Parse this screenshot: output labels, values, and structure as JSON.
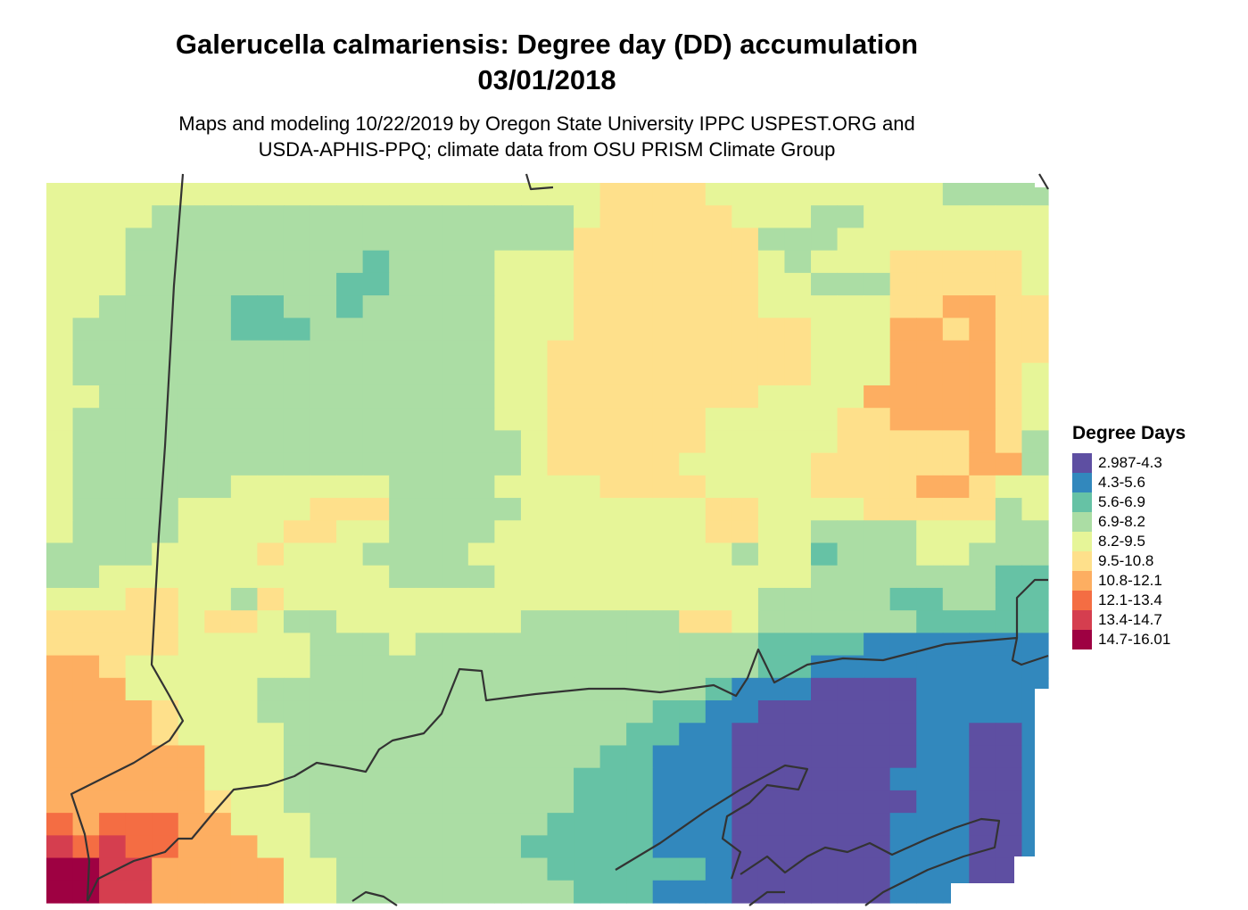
{
  "title_line1": "Galerucella calmariensis: Degree day (DD) accumulation",
  "title_line2": "03/01/2018",
  "subtitle_line1": "Maps and modeling 10/22/2019 by Oregon State University IPPC USPEST.ORG and",
  "subtitle_line2": "USDA-APHIS-PPQ; climate data from OSU PRISM Climate Group",
  "legend": {
    "title": "Degree Days",
    "items": [
      {
        "label": "2.987-4.3",
        "color": "#5E4FA2"
      },
      {
        "label": "4.3-5.6",
        "color": "#3288BD"
      },
      {
        "label": "5.6-6.9",
        "color": "#66C2A5"
      },
      {
        "label": "6.9-8.2",
        "color": "#ABDDA4"
      },
      {
        "label": "8.2-9.5",
        "color": "#E6F598"
      },
      {
        "label": "9.5-10.8",
        "color": "#FEE08B"
      },
      {
        "label": "10.8-12.1",
        "color": "#FDAE61"
      },
      {
        "label": "12.1-13.4",
        "color": "#F46D43"
      },
      {
        "label": "13.4-14.7",
        "color": "#D53E4F"
      },
      {
        "label": "14.7-16.01",
        "color": "#9E0142"
      }
    ]
  },
  "grid_classes": [
    "44444444444444444444455554444444443333",
    "44443333333333333333455555444334444444",
    "44433333333333333333555555533344444444",
    "44433333333323333444555555543444555554",
    "44433333333223333444555555544333555554",
    "44333332233233333444555555544444556655",
    "43333332223333333444555555555444665655",
    "43333333333333333445555555555444666655",
    "43333333333333333445555555555444666654",
    "44333333333333333445555555544446666654",
    "43333333333333333445555554444455666654",
    "43333333333333333345555554444455555653",
    "43333333333333333345555544444555555663",
    "43333334444443333444455554444555566544",
    "43333444445553333344444445544445555534",
    "43333444455443333444444445544333344433",
    "33334444544433334444444444344233344333",
    "33444444444443333444444444444333333322",
    "44455443544444444444444444433333223322",
    "55555455433444444433333355433333322222",
    "55555444443334333333333333322221111111",
    "66544444443333333333333333322111111111",
    "66644444333333333333333332111000011111",
    "66665444333333333333333221100000011111",
    "66665444433333333333332211000000011001",
    "66666644433333333333322111000000011001",
    "66666644433333333333222111000000111001",
    "66666654433333333333222111000000011001",
    "76777664443333333332222111000000111001",
    "87877666443333333322222111000000111001",
    "99886666644333333332222221000000111000",
    "99886666644333333333222111000000111000"
  ]
}
